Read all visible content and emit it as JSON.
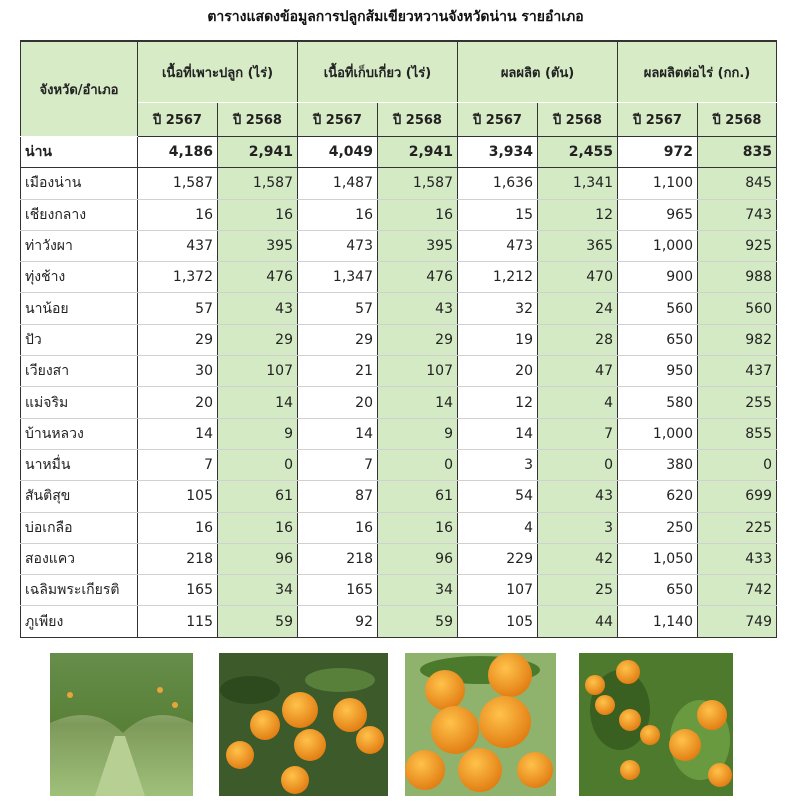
{
  "title": "ตารางแสดงข้อมูลการปลูกส้มเขียวหวานจังหวัดน่าน รายอำเภอ",
  "table": {
    "header_groups": [
      "จังหวัด/อำเภอ",
      "เนื้อที่เพาะปลูก (ไร่)",
      "เนื้อที่เก็บเกี่ยว (ไร่)",
      "ผลผลิต (ตัน)",
      "ผลผลิตต่อไร่ (กก.)"
    ],
    "years": [
      "ปี 2567",
      "ปี 2568",
      "ปี 2567",
      "ปี 2568",
      "ปี 2567",
      "ปี 2568",
      "ปี 2567",
      "ปี 2568"
    ],
    "rows": [
      [
        "น่าน",
        "4,186",
        "2,941",
        "4,049",
        "2,941",
        "3,934",
        "2,455",
        "972",
        "835"
      ],
      [
        "เมืองน่าน",
        "1,587",
        "1,587",
        "1,487",
        "1,587",
        "1,636",
        "1,341",
        "1,100",
        "845"
      ],
      [
        "เชียงกลาง",
        "16",
        "16",
        "16",
        "16",
        "15",
        "12",
        "965",
        "743"
      ],
      [
        "ท่าวังผา",
        "437",
        "395",
        "473",
        "395",
        "473",
        "365",
        "1,000",
        "925"
      ],
      [
        "ทุ่งช้าง",
        "1,372",
        "476",
        "1,347",
        "476",
        "1,212",
        "470",
        "900",
        "988"
      ],
      [
        "นาน้อย",
        "57",
        "43",
        "57",
        "43",
        "32",
        "24",
        "560",
        "560"
      ],
      [
        "ปัว",
        "29",
        "29",
        "29",
        "29",
        "19",
        "28",
        "650",
        "982"
      ],
      [
        "เวียงสา",
        "30",
        "107",
        "21",
        "107",
        "20",
        "47",
        "950",
        "437"
      ],
      [
        "แม่จริม",
        "20",
        "14",
        "20",
        "14",
        "12",
        "4",
        "580",
        "255"
      ],
      [
        "บ้านหลวง",
        "14",
        "9",
        "14",
        "9",
        "14",
        "7",
        "1,000",
        "855"
      ],
      [
        "นาหมื่น",
        "7",
        "0",
        "7",
        "0",
        "3",
        "0",
        "380",
        "0"
      ],
      [
        "สันติสุข",
        "105",
        "61",
        "87",
        "61",
        "54",
        "43",
        "620",
        "699"
      ],
      [
        "บ่อเกลือ",
        "16",
        "16",
        "16",
        "16",
        "4",
        "3",
        "250",
        "225"
      ],
      [
        "สองแคว",
        "218",
        "96",
        "218",
        "96",
        "229",
        "42",
        "1,050",
        "433"
      ],
      [
        "เฉลิมพระเกียรติ",
        "165",
        "34",
        "165",
        "34",
        "107",
        "25",
        "650",
        "742"
      ],
      [
        "ภูเพียง",
        "115",
        "59",
        "92",
        "59",
        "105",
        "44",
        "1,140",
        "749"
      ]
    ]
  }
}
